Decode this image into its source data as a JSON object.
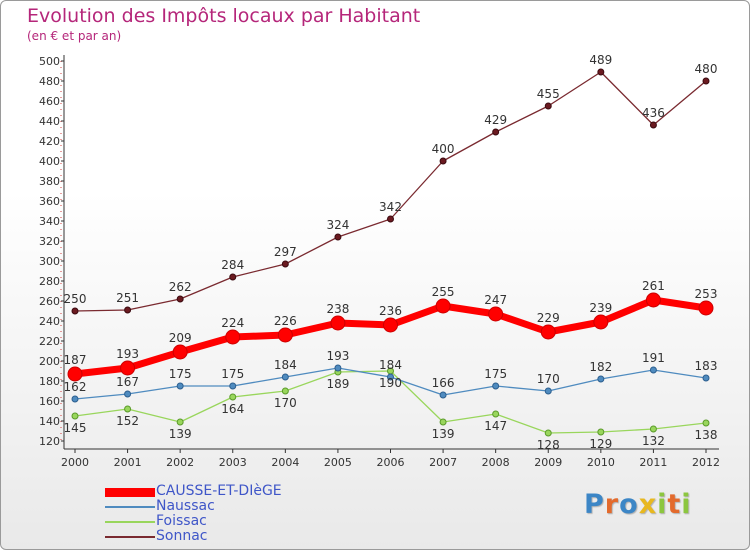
{
  "chart_data": {
    "type": "line",
    "title": "Evolution des Impôts locaux par Habitant",
    "subtitle": "(en € et par an)",
    "x": [
      "2000",
      "2001",
      "2002",
      "2003",
      "2004",
      "2005",
      "2006",
      "2007",
      "2008",
      "2009",
      "2010",
      "2011",
      "2012"
    ],
    "ylim": [
      120,
      500
    ],
    "yticks": [
      120,
      140,
      160,
      180,
      200,
      220,
      240,
      260,
      280,
      300,
      320,
      340,
      360,
      380,
      400,
      420,
      440,
      460,
      480,
      500
    ],
    "grid": false,
    "legend_position": "bottom-left",
    "series": [
      {
        "name": "CAUSSE-ET-DIèGE",
        "color": "#ff0000",
        "values": [
          187,
          193,
          209,
          224,
          226,
          238,
          236,
          255,
          247,
          229,
          239,
          261,
          253
        ]
      },
      {
        "name": "Naussac",
        "color": "#4f8bbf",
        "values": [
          162,
          167,
          175,
          175,
          184,
          193,
          184,
          166,
          175,
          170,
          182,
          191,
          183
        ]
      },
      {
        "name": "Foissac",
        "color": "#99d65c",
        "values": [
          145,
          152,
          139,
          164,
          170,
          189,
          190,
          139,
          147,
          128,
          129,
          132,
          138
        ]
      },
      {
        "name": "Sonnac",
        "color": "#7a2a30",
        "values": [
          250,
          251,
          262,
          284,
          297,
          324,
          342,
          400,
          429,
          455,
          489,
          436,
          480
        ]
      }
    ]
  },
  "logo": {
    "letters": [
      "P",
      "r",
      "o",
      "x",
      "i",
      "t",
      "i"
    ],
    "colors": [
      "#3c86c6",
      "#e36a2c",
      "#3c86c6",
      "#e8b81f",
      "#8cc63f",
      "#e36a2c",
      "#8cc63f"
    ]
  }
}
